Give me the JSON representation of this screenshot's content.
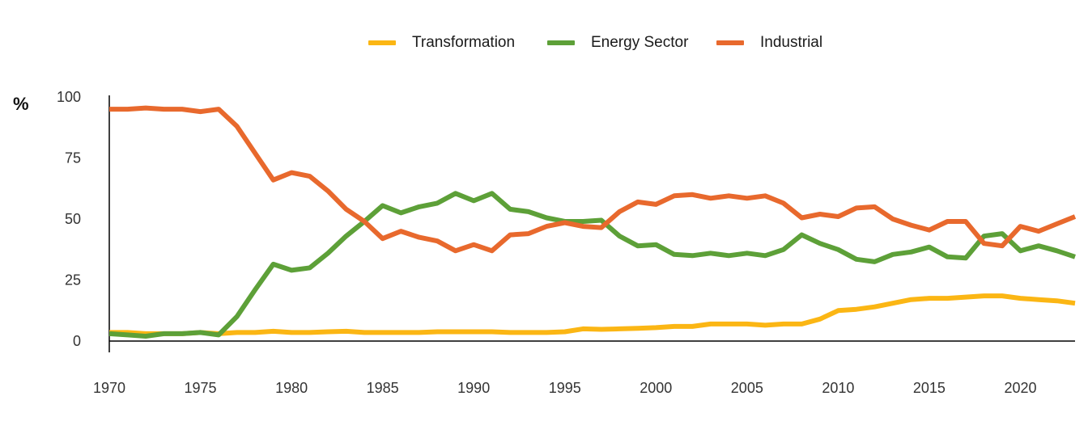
{
  "chart_data": {
    "type": "line",
    "title": "",
    "xlabel": "",
    "ylabel": "%",
    "ylim": [
      0,
      100
    ],
    "xlim": [
      1970,
      2023
    ],
    "yticks": [
      0,
      25,
      50,
      75,
      100
    ],
    "xticks": [
      1970,
      1975,
      1980,
      1985,
      1990,
      1995,
      2000,
      2005,
      2010,
      2015,
      2020
    ],
    "grid": false,
    "legend_position": "top-center",
    "x": [
      1970,
      1971,
      1972,
      1973,
      1974,
      1975,
      1976,
      1977,
      1978,
      1979,
      1980,
      1981,
      1982,
      1983,
      1984,
      1985,
      1986,
      1987,
      1988,
      1989,
      1990,
      1991,
      1992,
      1993,
      1994,
      1995,
      1996,
      1997,
      1998,
      1999,
      2000,
      2001,
      2002,
      2003,
      2004,
      2005,
      2006,
      2007,
      2008,
      2009,
      2010,
      2011,
      2012,
      2013,
      2014,
      2015,
      2016,
      2017,
      2018,
      2019,
      2020,
      2021,
      2022,
      2023
    ],
    "series": [
      {
        "name": "Transformation",
        "color": "#FBB614",
        "values": [
          3.5,
          3.5,
          3.0,
          3.0,
          3.0,
          3.5,
          3.0,
          3.5,
          3.5,
          4.0,
          3.5,
          3.5,
          3.8,
          4.0,
          3.5,
          3.5,
          3.5,
          3.5,
          3.8,
          3.8,
          3.8,
          3.8,
          3.5,
          3.5,
          3.5,
          3.8,
          5.0,
          4.8,
          5.0,
          5.2,
          5.5,
          6.0,
          6.0,
          7.0,
          7.0,
          7.0,
          6.5,
          7.0,
          7.0,
          9.0,
          12.5,
          13.0,
          14.0,
          15.5,
          17.0,
          17.5,
          17.5,
          18.0,
          18.5,
          18.5,
          17.5,
          17.0,
          16.5,
          15.5
        ]
      },
      {
        "name": "Energy Sector",
        "color": "#5DA038",
        "values": [
          3.0,
          2.5,
          2.0,
          3.0,
          3.0,
          3.5,
          2.5,
          10.0,
          21.0,
          31.5,
          29.0,
          30.0,
          36.0,
          43.0,
          49.0,
          55.5,
          52.5,
          55.0,
          56.5,
          60.5,
          57.5,
          60.5,
          54.0,
          53.0,
          50.5,
          49.0,
          49.0,
          49.5,
          43.0,
          39.0,
          39.5,
          35.5,
          35.0,
          36.0,
          35.0,
          36.0,
          35.0,
          37.5,
          43.5,
          40.0,
          37.5,
          33.5,
          32.5,
          35.5,
          36.5,
          38.5,
          34.5,
          34.0,
          43.0,
          44.0,
          37.0,
          39.0,
          37.0,
          34.5
        ]
      },
      {
        "name": "Industrial",
        "color": "#E8692D",
        "values": [
          95.0,
          95.0,
          95.5,
          95.0,
          95.0,
          94.0,
          95.0,
          88.0,
          77.0,
          66.0,
          69.0,
          67.5,
          61.5,
          54.0,
          49.0,
          42.0,
          45.0,
          42.5,
          41.0,
          37.0,
          39.5,
          37.0,
          43.5,
          44.0,
          47.0,
          48.5,
          47.0,
          46.5,
          53.0,
          57.0,
          56.0,
          59.5,
          60.0,
          58.5,
          59.5,
          58.5,
          59.5,
          56.5,
          50.5,
          52.0,
          51.0,
          54.5,
          55.0,
          50.0,
          47.5,
          45.5,
          49.0,
          49.0,
          40.0,
          39.0,
          47.0,
          45.0,
          48.0,
          51.0
        ]
      }
    ]
  }
}
